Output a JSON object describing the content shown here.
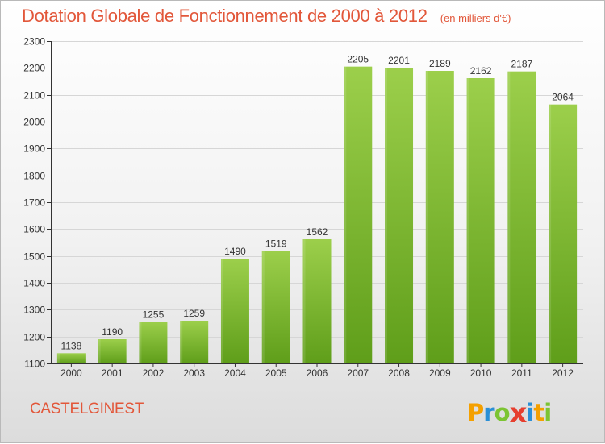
{
  "header": {
    "title": "Dotation Globale de Fonctionnement de 2000 à 2012",
    "unit": "(en milliers d'€)"
  },
  "footer": {
    "commune": "CASTELGINEST",
    "brand_letters": [
      "P",
      "r",
      "o",
      "x",
      "i",
      "t",
      "i"
    ],
    "brand_colors": [
      "#f4a000",
      "#2a8fd6",
      "#7cc433",
      "#e63f2f",
      "#2a8fd6",
      "#f4a000",
      "#7cc433"
    ]
  },
  "chart_data": {
    "type": "bar",
    "categories": [
      "2000",
      "2001",
      "2002",
      "2003",
      "2004",
      "2005",
      "2006",
      "2007",
      "2008",
      "2009",
      "2010",
      "2011",
      "2012"
    ],
    "values": [
      1138,
      1190,
      1255,
      1259,
      1490,
      1519,
      1562,
      2205,
      2201,
      2189,
      2162,
      2187,
      2064
    ],
    "ylim": [
      1100,
      2300
    ],
    "yticks": [
      1100,
      1200,
      1300,
      1400,
      1500,
      1600,
      1700,
      1800,
      1900,
      2000,
      2100,
      2200,
      2300
    ],
    "grid": true,
    "bar_color_top": "#9ccf4b",
    "bar_color_bottom": "#5f9e1a",
    "axis_color": "#333333",
    "grid_color": "#d6d6d6"
  }
}
